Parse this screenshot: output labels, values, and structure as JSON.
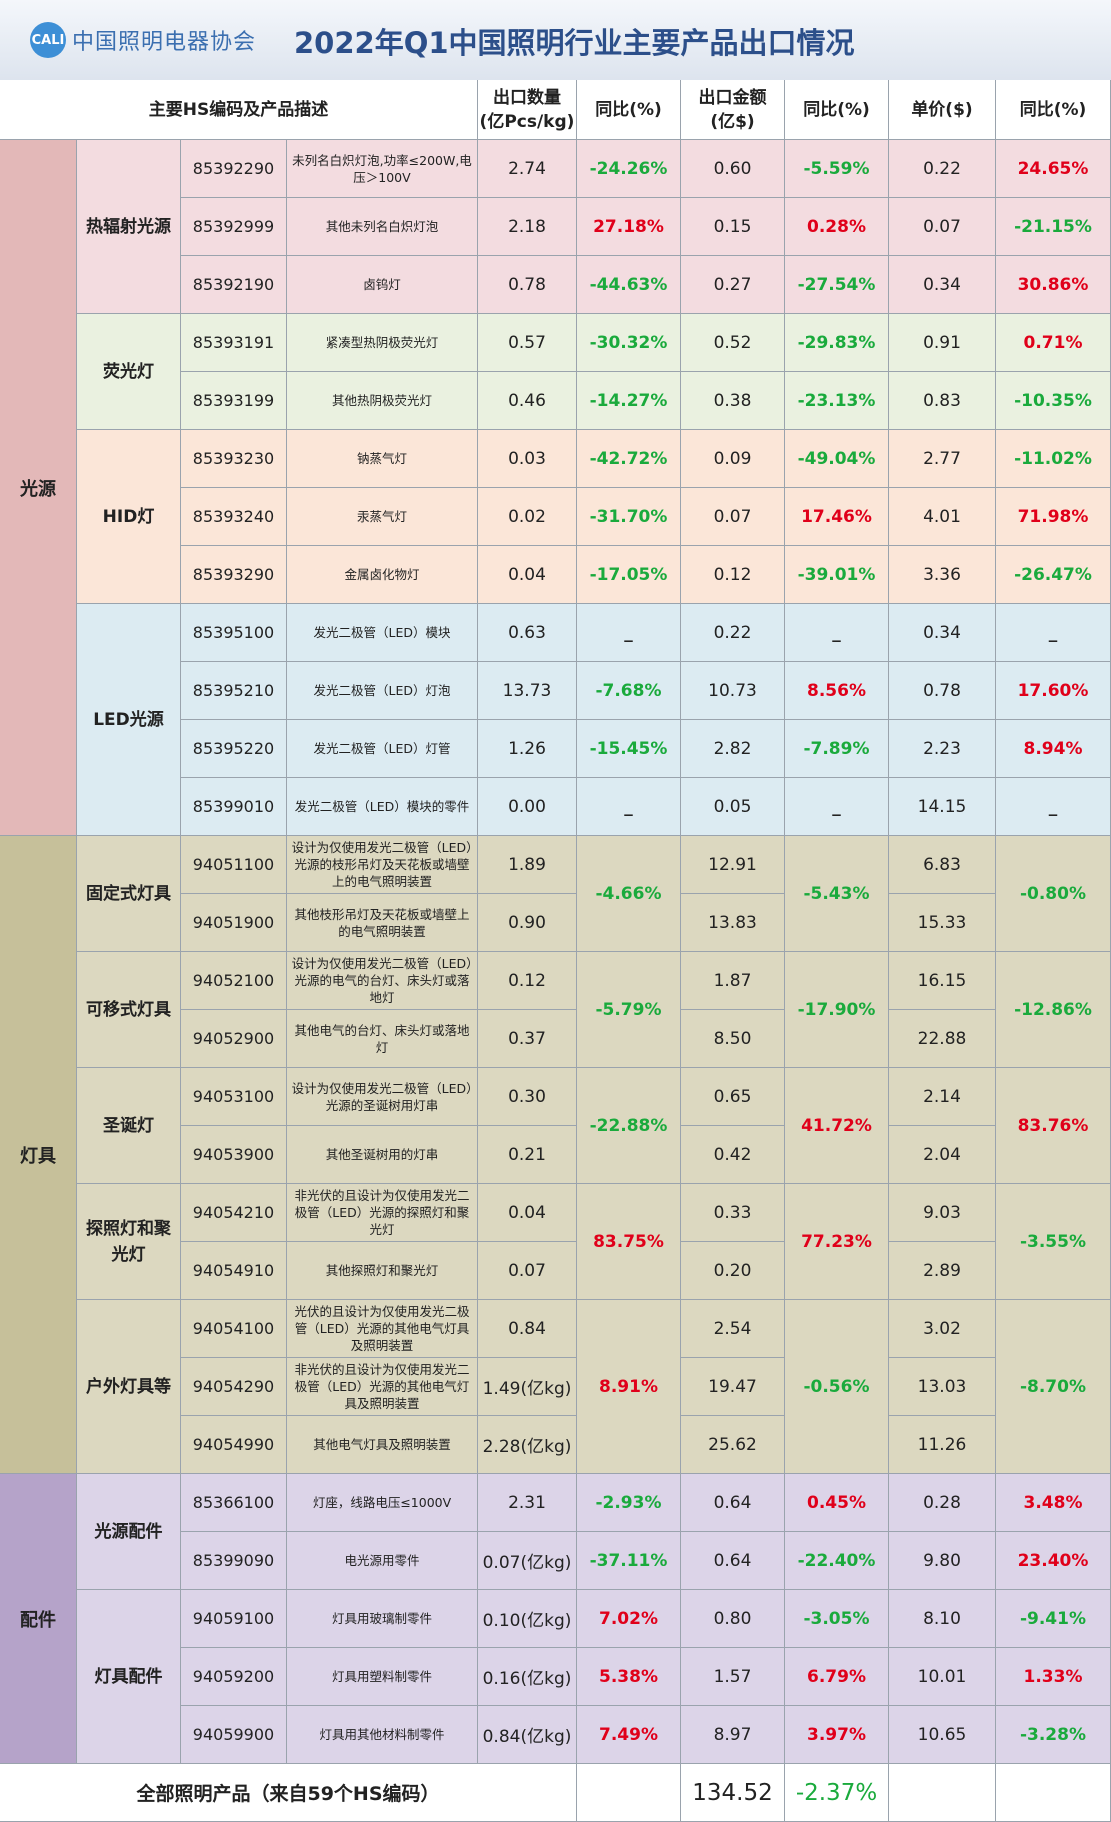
{
  "header": {
    "logo_mark": "CALI",
    "logo_text": "中国照明电器协会",
    "title": "2022年Q1中国照明行业主要产品出口情况"
  },
  "table": {
    "columns": [
      "主要HS编码及产品描述",
      "出口数量\n(亿Pcs/kg)",
      "同比(%)",
      "出口金额\n(亿$)",
      "同比(%)",
      "单价($)",
      "同比(%)"
    ],
    "groups": [
      {
        "name": "光源",
        "color": "#e3b8b8",
        "subgroups": [
          {
            "name": "热辐射光源",
            "color": "#f3dce0",
            "rows": [
              {
                "code": "85392290",
                "desc": "未列名白炽灯泡,功率≤200W,电压＞100V",
                "qty": "2.74",
                "qty_yoy": "-24.26%",
                "amt": "0.60",
                "amt_yoy": "-5.59%",
                "price": "0.22",
                "price_yoy": "24.65%"
              },
              {
                "code": "85392999",
                "desc": "其他未列名白炽灯泡",
                "qty": "2.18",
                "qty_yoy": "27.18%",
                "amt": "0.15",
                "amt_yoy": "0.28%",
                "price": "0.07",
                "price_yoy": "-21.15%"
              },
              {
                "code": "85392190",
                "desc": "卤钨灯",
                "qty": "0.78",
                "qty_yoy": "-44.63%",
                "amt": "0.27",
                "amt_yoy": "-27.54%",
                "price": "0.34",
                "price_yoy": "30.86%"
              }
            ]
          },
          {
            "name": "荧光灯",
            "color": "#eaf1e0",
            "rows": [
              {
                "code": "85393191",
                "desc": "紧凑型热阴极荧光灯",
                "qty": "0.57",
                "qty_yoy": "-30.32%",
                "amt": "0.52",
                "amt_yoy": "-29.83%",
                "price": "0.91",
                "price_yoy": "0.71%"
              },
              {
                "code": "85393199",
                "desc": "其他热阴极荧光灯",
                "qty": "0.46",
                "qty_yoy": "-14.27%",
                "amt": "0.38",
                "amt_yoy": "-23.13%",
                "price": "0.83",
                "price_yoy": "-10.35%"
              }
            ]
          },
          {
            "name": "HID灯",
            "color": "#fbe6d8",
            "rows": [
              {
                "code": "85393230",
                "desc": "钠蒸气灯",
                "qty": "0.03",
                "qty_yoy": "-42.72%",
                "amt": "0.09",
                "amt_yoy": "-49.04%",
                "price": "2.77",
                "price_yoy": "-11.02%"
              },
              {
                "code": "85393240",
                "desc": "汞蒸气灯",
                "qty": "0.02",
                "qty_yoy": "-31.70%",
                "amt": "0.07",
                "amt_yoy": "17.46%",
                "price": "4.01",
                "price_yoy": "71.98%"
              },
              {
                "code": "85393290",
                "desc": "金属卤化物灯",
                "qty": "0.04",
                "qty_yoy": "-17.05%",
                "amt": "0.12",
                "amt_yoy": "-39.01%",
                "price": "3.36",
                "price_yoy": "-26.47%"
              }
            ]
          },
          {
            "name": "LED光源",
            "color": "#dcebf2",
            "rows": [
              {
                "code": "85395100",
                "desc": "发光二极管（LED）模块",
                "qty": "0.63",
                "qty_yoy": "_",
                "amt": "0.22",
                "amt_yoy": "_",
                "price": "0.34",
                "price_yoy": "_"
              },
              {
                "code": "85395210",
                "desc": "发光二极管（LED）灯泡",
                "qty": "13.73",
                "qty_yoy": "-7.68%",
                "amt": "10.73",
                "amt_yoy": "8.56%",
                "price": "0.78",
                "price_yoy": "17.60%"
              },
              {
                "code": "85395220",
                "desc": "发光二极管（LED）灯管",
                "qty": "1.26",
                "qty_yoy": "-15.45%",
                "amt": "2.82",
                "amt_yoy": "-7.89%",
                "price": "2.23",
                "price_yoy": "8.94%"
              },
              {
                "code": "85399010",
                "desc": "发光二极管（LED）模块的零件",
                "qty": "0.00",
                "qty_yoy": "_",
                "amt": "0.05",
                "amt_yoy": "_",
                "price": "14.15",
                "price_yoy": "_"
              }
            ]
          }
        ]
      },
      {
        "name": "灯具",
        "color": "#c6c09a",
        "subgroups": [
          {
            "name": "固定式灯具",
            "color": "#dcd8c0",
            "merged": {
              "qty_yoy": "-4.66%",
              "amt_yoy": "-5.43%",
              "price_yoy": "-0.80%"
            },
            "rows": [
              {
                "code": "94051100",
                "desc": "设计为仅使用发光二极管（LED）光源的枝形吊灯及天花板或墙壁上的电气照明装置",
                "qty": "1.89",
                "amt": "12.91",
                "price": "6.83"
              },
              {
                "code": "94051900",
                "desc": "其他枝形吊灯及天花板或墙壁上的电气照明装置",
                "qty": "0.90",
                "amt": "13.83",
                "price": "15.33"
              }
            ]
          },
          {
            "name": "可移式灯具",
            "color": "#dcd8c0",
            "merged": {
              "qty_yoy": "-5.79%",
              "amt_yoy": "-17.90%",
              "price_yoy": "-12.86%"
            },
            "rows": [
              {
                "code": "94052100",
                "desc": "设计为仅使用发光二极管（LED）光源的电气的台灯、床头灯或落地灯",
                "qty": "0.12",
                "amt": "1.87",
                "price": "16.15"
              },
              {
                "code": "94052900",
                "desc": "其他电气的台灯、床头灯或落地灯",
                "qty": "0.37",
                "amt": "8.50",
                "price": "22.88"
              }
            ]
          },
          {
            "name": "圣诞灯",
            "color": "#dcd8c0",
            "merged": {
              "qty_yoy": "-22.88%",
              "amt_yoy": "41.72%",
              "price_yoy": "83.76%"
            },
            "rows": [
              {
                "code": "94053100",
                "desc": "设计为仅使用发光二极管（LED）光源的圣诞树用灯串",
                "qty": "0.30",
                "amt": "0.65",
                "price": "2.14"
              },
              {
                "code": "94053900",
                "desc": "其他圣诞树用的灯串",
                "qty": "0.21",
                "amt": "0.42",
                "price": "2.04"
              }
            ]
          },
          {
            "name": "探照灯和聚光灯",
            "color": "#dcd8c0",
            "merged": {
              "qty_yoy": "83.75%",
              "amt_yoy": "77.23%",
              "price_yoy": "-3.55%"
            },
            "rows": [
              {
                "code": "94054210",
                "desc": "非光伏的且设计为仅使用发光二极管（LED）光源的探照灯和聚光灯",
                "qty": "0.04",
                "amt": "0.33",
                "price": "9.03"
              },
              {
                "code": "94054910",
                "desc": "其他探照灯和聚光灯",
                "qty": "0.07",
                "amt": "0.20",
                "price": "2.89"
              }
            ]
          },
          {
            "name": "户外灯具等",
            "color": "#dcd8c0",
            "merged": {
              "qty_yoy": "8.91%",
              "amt_yoy": "-0.56%",
              "price_yoy": "-8.70%"
            },
            "rows": [
              {
                "code": "94054100",
                "desc": "光伏的且设计为仅使用发光二极管（LED）光源的其他电气灯具及照明装置",
                "qty": "0.84",
                "amt": "2.54",
                "price": "3.02"
              },
              {
                "code": "94054290",
                "desc": "非光伏的且设计为仅使用发光二极管（LED）光源的其他电气灯具及照明装置",
                "qty": "1.49(亿kg)",
                "amt": "19.47",
                "price": "13.03"
              },
              {
                "code": "94054990",
                "desc": "其他电气灯具及照明装置",
                "qty": "2.28(亿kg)",
                "amt": "25.62",
                "price": "11.26"
              }
            ]
          }
        ]
      },
      {
        "name": "配件",
        "color": "#b5a3c9",
        "subgroups": [
          {
            "name": "光源配件",
            "color": "#dcd4e8",
            "rows": [
              {
                "code": "85366100",
                "desc": "灯座，线路电压≤1000V",
                "qty": "2.31",
                "qty_yoy": "-2.93%",
                "amt": "0.64",
                "amt_yoy": "0.45%",
                "price": "0.28",
                "price_yoy": "3.48%"
              },
              {
                "code": "85399090",
                "desc": "电光源用零件",
                "qty": "0.07(亿kg)",
                "qty_yoy": "-37.11%",
                "amt": "0.64",
                "amt_yoy": "-22.40%",
                "price": "9.80",
                "price_yoy": "23.40%"
              }
            ]
          },
          {
            "name": "灯具配件",
            "color": "#dcd4e8",
            "rows": [
              {
                "code": "94059100",
                "desc": "灯具用玻璃制零件",
                "qty": "0.10(亿kg)",
                "qty_yoy": "7.02%",
                "amt": "0.80",
                "amt_yoy": "-3.05%",
                "price": "8.10",
                "price_yoy": "-9.41%"
              },
              {
                "code": "94059200",
                "desc": "灯具用塑料制零件",
                "qty": "0.16(亿kg)",
                "qty_yoy": "5.38%",
                "amt": "1.57",
                "amt_yoy": "6.79%",
                "price": "10.01",
                "price_yoy": "1.33%"
              },
              {
                "code": "94059900",
                "desc": "灯具用其他材料制零件",
                "qty": "0.84(亿kg)",
                "qty_yoy": "7.49%",
                "amt": "8.97",
                "amt_yoy": "3.97%",
                "price": "10.65",
                "price_yoy": "-3.28%"
              }
            ]
          }
        ]
      }
    ],
    "total": {
      "label": "全部照明产品（来自59个HS编码）",
      "amt": "134.52",
      "amt_yoy": "-2.37%"
    }
  }
}
